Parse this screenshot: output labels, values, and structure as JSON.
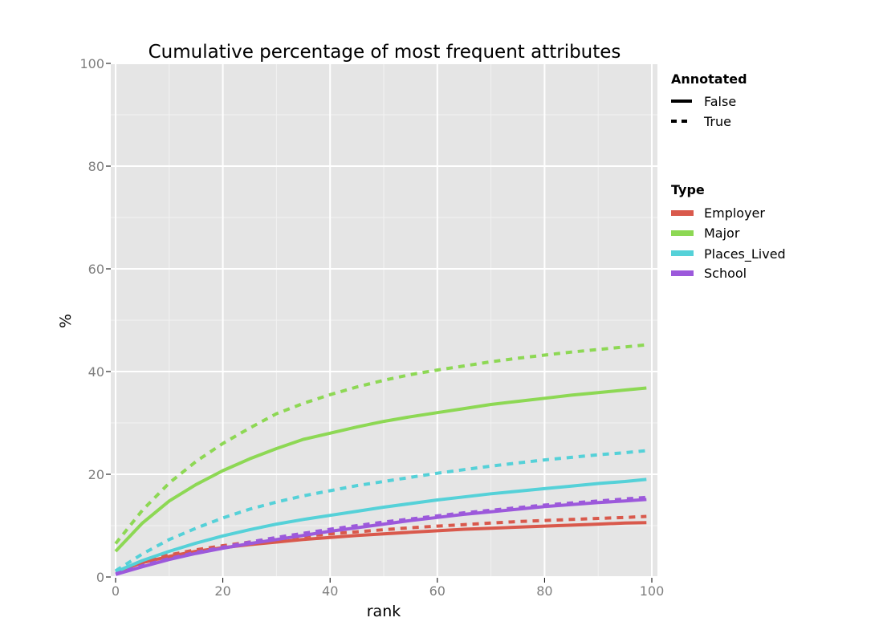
{
  "chart_data": {
    "type": "line",
    "title": "Cumulative percentage of most frequent attributes",
    "xlabel": "rank",
    "ylabel": "%",
    "xlim": [
      0,
      100
    ],
    "ylim": [
      0,
      100
    ],
    "xticks": [
      0,
      20,
      40,
      60,
      80,
      100
    ],
    "yticks": [
      0,
      20,
      40,
      60,
      80,
      100
    ],
    "grid": true,
    "background_color": "#e5e5e5",
    "grid_color": "#ffffff",
    "legend_placement": "right",
    "legend": {
      "annotated": {
        "title": "Annotated",
        "entries": [
          {
            "label": "False",
            "style": "solid"
          },
          {
            "label": "True",
            "style": "dashed"
          }
        ]
      },
      "type": {
        "title": "Type",
        "entries": [
          {
            "label": "Employer",
            "color": "#d9594c"
          },
          {
            "label": "Major",
            "color": "#8dd854"
          },
          {
            "label": "Places_Lived",
            "color": "#55d1d8"
          },
          {
            "label": "School",
            "color": "#9c59db"
          }
        ]
      }
    },
    "x": [
      0,
      5,
      10,
      15,
      20,
      25,
      30,
      35,
      40,
      45,
      50,
      55,
      60,
      65,
      70,
      75,
      80,
      85,
      90,
      95,
      99
    ],
    "series": [
      {
        "name": "Employer",
        "annotated": "False",
        "color": "#d9594c",
        "values": [
          1.0,
          2.8,
          4.0,
          5.0,
          5.7,
          6.3,
          6.8,
          7.3,
          7.7,
          8.1,
          8.4,
          8.7,
          9.0,
          9.3,
          9.5,
          9.7,
          9.9,
          10.1,
          10.3,
          10.5,
          10.6
        ]
      },
      {
        "name": "Employer",
        "annotated": "True",
        "color": "#d9594c",
        "values": [
          1.1,
          3.0,
          4.3,
          5.3,
          6.1,
          6.8,
          7.4,
          7.9,
          8.4,
          8.8,
          9.2,
          9.6,
          9.9,
          10.2,
          10.5,
          10.8,
          11.0,
          11.2,
          11.4,
          11.6,
          11.8
        ]
      },
      {
        "name": "Major",
        "annotated": "False",
        "color": "#8dd854",
        "values": [
          5.0,
          10.5,
          14.8,
          18.0,
          20.7,
          23.0,
          25.0,
          26.8,
          28.0,
          29.2,
          30.3,
          31.2,
          32.0,
          32.8,
          33.6,
          34.2,
          34.8,
          35.4,
          35.9,
          36.4,
          36.8
        ]
      },
      {
        "name": "Major",
        "annotated": "True",
        "color": "#8dd854",
        "values": [
          6.5,
          13.0,
          18.3,
          22.5,
          26.0,
          29.0,
          31.8,
          33.8,
          35.5,
          37.0,
          38.3,
          39.4,
          40.3,
          41.1,
          41.9,
          42.6,
          43.2,
          43.8,
          44.3,
          44.8,
          45.2
        ]
      },
      {
        "name": "Places_Lived",
        "annotated": "False",
        "color": "#55d1d8",
        "values": [
          1.0,
          3.2,
          5.0,
          6.6,
          8.0,
          9.2,
          10.3,
          11.2,
          12.0,
          12.8,
          13.6,
          14.3,
          15.0,
          15.6,
          16.2,
          16.7,
          17.2,
          17.7,
          18.2,
          18.6,
          19.0
        ]
      },
      {
        "name": "Places_Lived",
        "annotated": "True",
        "color": "#55d1d8",
        "values": [
          1.2,
          4.5,
          7.3,
          9.5,
          11.5,
          13.2,
          14.6,
          15.8,
          16.8,
          17.8,
          18.6,
          19.4,
          20.2,
          20.9,
          21.6,
          22.2,
          22.8,
          23.3,
          23.8,
          24.2,
          24.6
        ]
      },
      {
        "name": "School",
        "annotated": "False",
        "color": "#9c59db",
        "values": [
          0.5,
          2.0,
          3.4,
          4.6,
          5.6,
          6.5,
          7.3,
          8.1,
          8.9,
          9.6,
          10.3,
          11.0,
          11.6,
          12.2,
          12.7,
          13.2,
          13.7,
          14.1,
          14.5,
          14.8,
          15.1
        ]
      },
      {
        "name": "School",
        "annotated": "True",
        "color": "#9c59db",
        "values": [
          0.6,
          2.2,
          3.6,
          4.8,
          5.8,
          6.8,
          7.7,
          8.5,
          9.3,
          10.0,
          10.7,
          11.3,
          11.9,
          12.5,
          13.0,
          13.5,
          14.0,
          14.4,
          14.8,
          15.2,
          15.5
        ]
      }
    ]
  }
}
